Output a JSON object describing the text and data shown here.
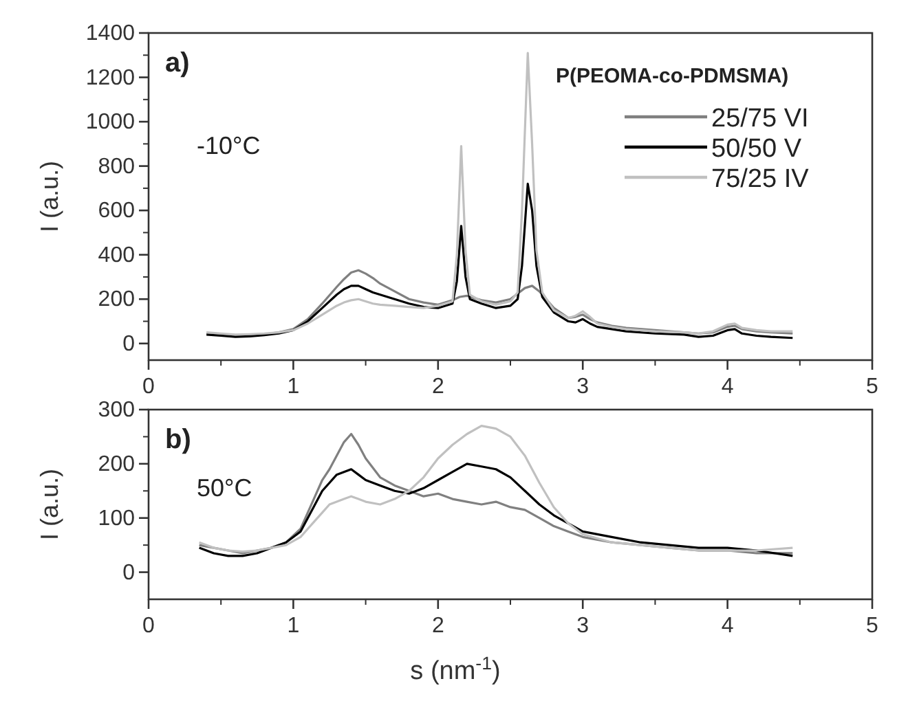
{
  "chart_data": [
    {
      "type": "line",
      "ylabel": "I (a.u.)",
      "legend_title": "P(PEOMA-co-PDMSMA)",
      "legend": "top right",
      "annotations": [
        "a)",
        "-10°C"
      ],
      "xlim": [
        0,
        5
      ],
      "xticks": [
        0,
        1,
        2,
        3,
        4,
        5
      ],
      "ylim": [
        -75,
        1400
      ],
      "yticks": [
        0,
        200,
        400,
        600,
        800,
        1000,
        1200,
        1400
      ],
      "grid": false,
      "line_style": "solid",
      "series": [
        {
          "name": "25/75 VI",
          "color": "#808080",
          "x": [
            0.4,
            0.5,
            0.6,
            0.7,
            0.8,
            0.9,
            1.0,
            1.1,
            1.2,
            1.3,
            1.35,
            1.4,
            1.45,
            1.5,
            1.55,
            1.6,
            1.7,
            1.8,
            1.9,
            2.0,
            2.1,
            2.15,
            2.2,
            2.3,
            2.4,
            2.5,
            2.55,
            2.6,
            2.65,
            2.7,
            2.8,
            2.9,
            2.95,
            3.0,
            3.05,
            3.1,
            3.2,
            3.3,
            3.5,
            3.7,
            3.8,
            3.9,
            4.0,
            4.05,
            4.1,
            4.2,
            4.3,
            4.45
          ],
          "values": [
            45,
            40,
            35,
            38,
            42,
            50,
            65,
            110,
            180,
            255,
            290,
            320,
            330,
            315,
            295,
            270,
            235,
            200,
            185,
            175,
            195,
            210,
            215,
            195,
            185,
            200,
            225,
            250,
            260,
            235,
            160,
            115,
            120,
            130,
            110,
            95,
            80,
            70,
            60,
            50,
            45,
            50,
            75,
            80,
            65,
            55,
            50,
            45
          ]
        },
        {
          "name": "50/50 V",
          "color": "#000000",
          "x": [
            0.4,
            0.5,
            0.6,
            0.7,
            0.8,
            0.9,
            1.0,
            1.1,
            1.2,
            1.3,
            1.35,
            1.4,
            1.45,
            1.5,
            1.55,
            1.6,
            1.7,
            1.8,
            1.9,
            2.0,
            2.1,
            2.13,
            2.16,
            2.19,
            2.22,
            2.3,
            2.4,
            2.5,
            2.55,
            2.58,
            2.62,
            2.65,
            2.68,
            2.72,
            2.8,
            2.9,
            2.95,
            3.0,
            3.05,
            3.1,
            3.2,
            3.3,
            3.5,
            3.7,
            3.8,
            3.9,
            4.0,
            4.05,
            4.1,
            4.2,
            4.3,
            4.45
          ],
          "values": [
            40,
            35,
            30,
            32,
            38,
            45,
            60,
            100,
            160,
            220,
            245,
            260,
            260,
            245,
            230,
            220,
            200,
            180,
            165,
            160,
            180,
            280,
            530,
            300,
            200,
            180,
            160,
            170,
            200,
            350,
            720,
            600,
            350,
            210,
            140,
            100,
            95,
            110,
            90,
            75,
            65,
            55,
            45,
            40,
            30,
            35,
            60,
            65,
            45,
            35,
            30,
            25
          ]
        },
        {
          "name": "75/25 IV",
          "color": "#c0c0c0",
          "x": [
            0.4,
            0.5,
            0.6,
            0.7,
            0.8,
            0.9,
            1.0,
            1.1,
            1.2,
            1.3,
            1.35,
            1.4,
            1.45,
            1.5,
            1.55,
            1.6,
            1.7,
            1.8,
            1.9,
            2.0,
            2.1,
            2.13,
            2.16,
            2.19,
            2.22,
            2.3,
            2.4,
            2.5,
            2.55,
            2.58,
            2.62,
            2.65,
            2.68,
            2.72,
            2.8,
            2.9,
            2.95,
            3.0,
            3.05,
            3.1,
            3.2,
            3.3,
            3.5,
            3.7,
            3.8,
            3.9,
            4.0,
            4.05,
            4.1,
            4.2,
            4.3,
            4.45
          ],
          "values": [
            50,
            45,
            40,
            42,
            45,
            50,
            60,
            90,
            130,
            170,
            185,
            195,
            200,
            190,
            180,
            175,
            170,
            165,
            160,
            170,
            190,
            400,
            890,
            420,
            220,
            190,
            175,
            190,
            230,
            600,
            1310,
            900,
            420,
            230,
            150,
            115,
            125,
            145,
            120,
            90,
            75,
            65,
            55,
            50,
            45,
            55,
            85,
            90,
            70,
            60,
            55,
            55
          ]
        }
      ]
    },
    {
      "type": "line",
      "xlabel": "s (nm$^{-1}$)",
      "ylabel": "I (a.u.)",
      "annotations": [
        "b)",
        "50°C"
      ],
      "xlim": [
        0,
        5
      ],
      "xticks": [
        0,
        1,
        2,
        3,
        4,
        5
      ],
      "ylim": [
        -50,
        300
      ],
      "yticks": [
        0,
        100,
        200,
        300
      ],
      "grid": false,
      "legend": false,
      "line_style": "solid",
      "series": [
        {
          "color": "#808080",
          "x": [
            0.35,
            0.45,
            0.55,
            0.65,
            0.75,
            0.85,
            0.95,
            1.05,
            1.1,
            1.15,
            1.2,
            1.25,
            1.3,
            1.35,
            1.4,
            1.45,
            1.5,
            1.6,
            1.7,
            1.8,
            1.9,
            2.0,
            2.1,
            2.2,
            2.3,
            2.4,
            2.5,
            2.6,
            2.7,
            2.8,
            2.9,
            3.0,
            3.2,
            3.4,
            3.6,
            3.8,
            4.0,
            4.2,
            4.45
          ],
          "values": [
            50,
            45,
            40,
            35,
            40,
            45,
            55,
            80,
            110,
            140,
            170,
            190,
            215,
            240,
            255,
            235,
            210,
            175,
            160,
            150,
            140,
            145,
            135,
            130,
            125,
            130,
            120,
            115,
            100,
            85,
            75,
            65,
            55,
            50,
            45,
            40,
            40,
            35,
            35
          ]
        },
        {
          "color": "#000000",
          "x": [
            0.35,
            0.45,
            0.55,
            0.65,
            0.75,
            0.85,
            0.95,
            1.05,
            1.1,
            1.15,
            1.2,
            1.25,
            1.3,
            1.35,
            1.4,
            1.45,
            1.5,
            1.6,
            1.7,
            1.8,
            1.9,
            2.0,
            2.1,
            2.2,
            2.3,
            2.4,
            2.5,
            2.6,
            2.7,
            2.8,
            2.9,
            3.0,
            3.2,
            3.4,
            3.6,
            3.8,
            4.0,
            4.2,
            4.45
          ],
          "values": [
            45,
            35,
            30,
            30,
            35,
            45,
            55,
            75,
            100,
            125,
            150,
            165,
            180,
            185,
            190,
            180,
            170,
            160,
            150,
            145,
            155,
            170,
            185,
            200,
            195,
            190,
            175,
            150,
            125,
            105,
            90,
            75,
            65,
            55,
            50,
            45,
            45,
            40,
            30
          ]
        },
        {
          "color": "#c0c0c0",
          "x": [
            0.35,
            0.45,
            0.55,
            0.65,
            0.75,
            0.85,
            0.95,
            1.05,
            1.1,
            1.15,
            1.2,
            1.25,
            1.3,
            1.35,
            1.4,
            1.45,
            1.5,
            1.6,
            1.7,
            1.8,
            1.9,
            2.0,
            2.1,
            2.2,
            2.3,
            2.4,
            2.5,
            2.6,
            2.7,
            2.8,
            2.9,
            3.0,
            3.2,
            3.4,
            3.6,
            3.8,
            4.0,
            4.2,
            4.45
          ],
          "values": [
            55,
            45,
            40,
            38,
            40,
            45,
            50,
            65,
            80,
            95,
            110,
            125,
            130,
            135,
            140,
            135,
            130,
            125,
            135,
            150,
            175,
            210,
            235,
            255,
            270,
            265,
            250,
            215,
            165,
            120,
            90,
            70,
            55,
            50,
            45,
            40,
            40,
            40,
            45
          ]
        }
      ]
    }
  ]
}
